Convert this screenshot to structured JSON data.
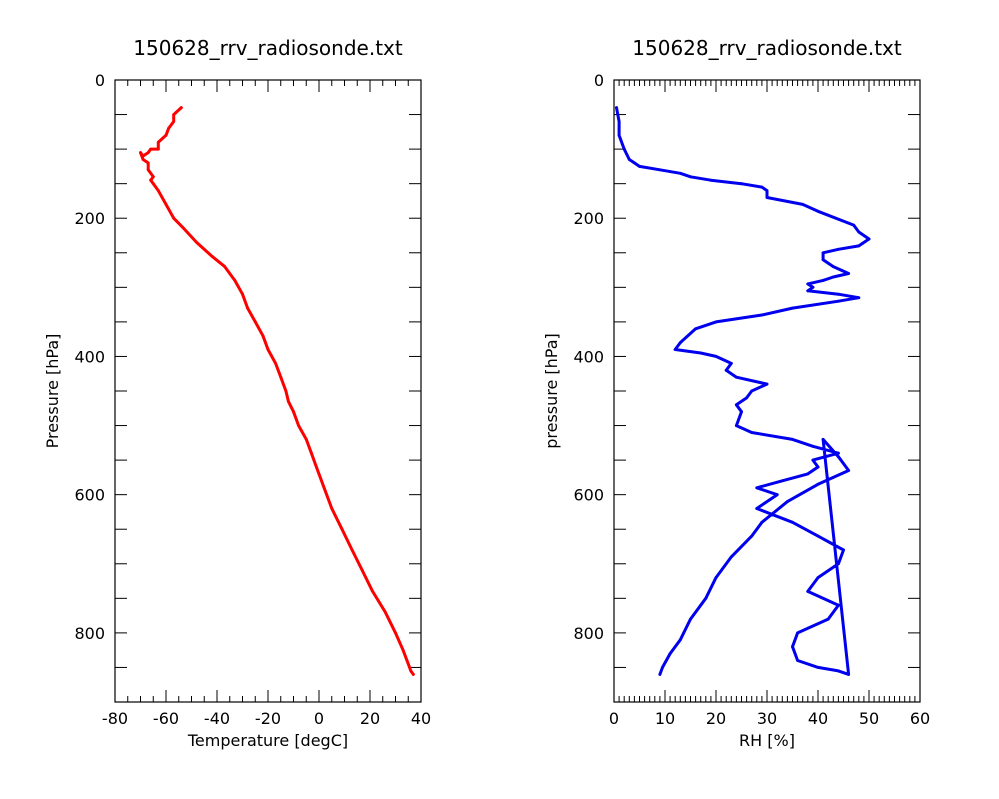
{
  "chart_data": [
    {
      "type": "line",
      "title": "150628_rrv_radiosonde.txt",
      "xlabel": "Temperature [degC]",
      "ylabel": "Pressure [hPa]",
      "xlim": [
        -80,
        40
      ],
      "ylim": [
        0,
        900
      ],
      "y_inverted": true,
      "grid": false,
      "x_ticks": [
        -80,
        -60,
        -40,
        -20,
        0,
        20,
        40
      ],
      "y_ticks": [
        0,
        200,
        400,
        600,
        800
      ],
      "color": "#ff0000",
      "series": [
        {
          "x": [
            -54,
            -57,
            -57,
            -59,
            -60,
            -63,
            -63,
            -66,
            -67,
            -69,
            -70,
            -69,
            -67,
            -67,
            -65,
            -66,
            -65,
            -63,
            -60,
            -57,
            -53,
            -48,
            -42,
            -37,
            -33,
            -30,
            -28,
            -25,
            -22,
            -20,
            -17,
            -15,
            -13,
            -12,
            -10,
            -8,
            -5,
            -3,
            -1,
            2,
            5,
            9,
            13,
            17,
            21,
            26,
            30,
            33,
            35,
            36,
            37
          ],
          "y": [
            40,
            50,
            60,
            70,
            80,
            90,
            100,
            100,
            105,
            110,
            105,
            115,
            120,
            130,
            140,
            145,
            150,
            160,
            180,
            200,
            215,
            235,
            255,
            270,
            290,
            310,
            330,
            350,
            370,
            390,
            410,
            430,
            450,
            465,
            480,
            500,
            520,
            540,
            560,
            590,
            620,
            650,
            680,
            710,
            740,
            770,
            800,
            825,
            845,
            855,
            860
          ]
        }
      ]
    },
    {
      "type": "line",
      "title": "150628_rrv_radiosonde.txt",
      "xlabel": "RH [%]",
      "ylabel": "pressure [hPa]",
      "xlim": [
        0,
        60
      ],
      "ylim": [
        0,
        900
      ],
      "y_inverted": true,
      "grid": false,
      "x_ticks": [
        0,
        10,
        20,
        30,
        40,
        50,
        60
      ],
      "y_ticks": [
        0,
        200,
        400,
        600,
        800
      ],
      "color": "#0000ee",
      "series": [
        {
          "x": [
            0.5,
            1,
            1,
            2,
            3,
            4,
            5,
            9,
            13,
            15,
            19,
            25,
            29,
            30,
            30,
            37,
            40,
            47,
            48,
            50,
            48,
            44,
            41,
            41,
            43,
            46,
            43,
            41,
            38,
            39,
            38,
            44,
            48,
            44,
            35,
            29,
            20,
            16,
            13,
            12,
            17,
            20,
            23,
            22,
            24,
            30,
            27,
            26,
            24,
            25,
            24,
            27,
            35,
            39,
            44,
            39,
            40,
            38,
            33,
            28,
            32,
            28,
            35,
            40,
            45,
            44,
            40,
            38,
            44,
            42,
            36,
            35,
            36,
            40,
            44,
            46,
            41,
            44,
            46,
            43,
            40,
            34,
            29,
            27,
            23,
            20,
            18,
            15,
            13,
            11,
            9.5,
            9
          ],
          "y": [
            40,
            60,
            80,
            100,
            115,
            120,
            125,
            130,
            135,
            140,
            145,
            150,
            155,
            160,
            170,
            180,
            190,
            210,
            220,
            230,
            240,
            245,
            250,
            260,
            270,
            280,
            285,
            290,
            295,
            300,
            305,
            310,
            315,
            320,
            330,
            340,
            350,
            360,
            380,
            390,
            395,
            400,
            410,
            420,
            430,
            440,
            450,
            460,
            470,
            480,
            500,
            510,
            520,
            530,
            540,
            550,
            560,
            570,
            580,
            590,
            600,
            620,
            640,
            660,
            680,
            700,
            720,
            740,
            760,
            780,
            800,
            820,
            840,
            850,
            855,
            860,
            520,
            545,
            565,
            575,
            585,
            610,
            640,
            660,
            690,
            720,
            750,
            780,
            810,
            830,
            850,
            860
          ]
        }
      ]
    }
  ]
}
